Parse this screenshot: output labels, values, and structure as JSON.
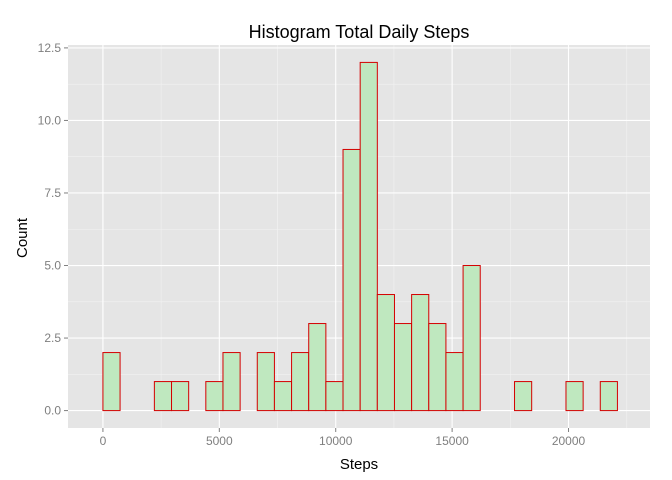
{
  "chart_data": {
    "type": "bar",
    "title": "Histogram Total Daily Steps",
    "xlabel": "Steps",
    "ylabel": "Count",
    "xlim": [
      -1500,
      23500
    ],
    "ylim": [
      -0.6,
      12.6
    ],
    "x_ticks": [
      0,
      5000,
      10000,
      15000,
      20000
    ],
    "x_tick_labels": [
      "0",
      "5000",
      "10000",
      "15000",
      "20000"
    ],
    "y_ticks": [
      0,
      2.5,
      5,
      7.5,
      10,
      12.5
    ],
    "y_tick_labels": [
      "0.0",
      "2.5",
      "5.0",
      "7.5",
      "10.0",
      "12.5"
    ],
    "bin_width": 736.7,
    "bin_start": -736.7,
    "bin_count": 31,
    "x": [
      -368.4,
      368.4,
      1105.1,
      1841.8,
      2578.5,
      3315.2,
      4051.9,
      4788.6,
      5525.3,
      6262.0,
      6998.7,
      7735.4,
      8472.1,
      9208.8,
      9945.5,
      10682.2,
      11418.9,
      12155.6,
      12892.3,
      13629.0,
      14365.7,
      15102.4,
      15839.1,
      16575.8,
      17312.5,
      18049.2,
      18785.9,
      19522.6,
      20259.3,
      20996.0,
      21732.7
    ],
    "values": [
      0,
      2,
      0,
      0,
      1,
      1,
      0,
      1,
      2,
      0,
      2,
      1,
      2,
      3,
      1,
      9,
      12,
      4,
      3,
      4,
      3,
      2,
      5,
      0,
      0,
      1,
      0,
      0,
      1,
      0,
      1
    ],
    "grid": true,
    "colors": {
      "panel_bg": "#e5e5e5",
      "major_grid": "#ffffff",
      "minor_grid": "#f2f2f2",
      "bar_fill": "#bfe8bf",
      "bar_stroke": "#d40000",
      "tick": "#7f7f7f"
    }
  }
}
